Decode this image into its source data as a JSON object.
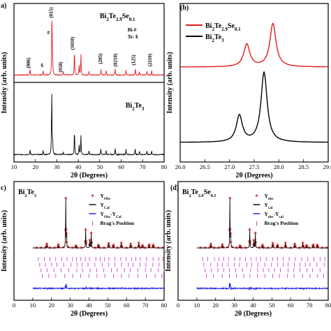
{
  "chart_data": [
    {
      "panel": "(a)",
      "type": "line",
      "xlabel": "2θ (Degrees)",
      "ylabel": "Intensity (arb. units)",
      "xlim": [
        10,
        80
      ],
      "xticks": [
        "10",
        "20",
        "30",
        "40",
        "50",
        "60",
        "70",
        "80"
      ],
      "series": [
        {
          "name": "Bi₂Te₂.₉Se₀.₁",
          "color": "#e41a1c",
          "peaks": [
            [
              17.5,
              0.1
            ],
            [
              23.6,
              0.06
            ],
            [
              27.7,
              1.0
            ],
            [
              28.0,
              0.22
            ],
            [
              33.0,
              0.05
            ],
            [
              38.2,
              0.38
            ],
            [
              40.4,
              0.15
            ],
            [
              41.2,
              0.32
            ],
            [
              45.0,
              0.06
            ],
            [
              50.6,
              0.09
            ],
            [
              53.0,
              0.06
            ],
            [
              57.2,
              0.1
            ],
            [
              62.2,
              0.08
            ],
            [
              66.6,
              0.1
            ],
            [
              68.5,
              0.05
            ],
            [
              72.0,
              0.06
            ],
            [
              74.2,
              0.07
            ]
          ]
        },
        {
          "name": "Bi₂Te₃",
          "color": "#000000",
          "peaks": [
            [
              17.5,
              0.08
            ],
            [
              23.6,
              0.06
            ],
            [
              27.6,
              1.0
            ],
            [
              28.0,
              0.22
            ],
            [
              33.0,
              0.04
            ],
            [
              38.2,
              0.37
            ],
            [
              40.4,
              0.15
            ],
            [
              41.2,
              0.3
            ],
            [
              45.0,
              0.06
            ],
            [
              50.5,
              0.09
            ],
            [
              53.0,
              0.06
            ],
            [
              57.2,
              0.1
            ],
            [
              62.2,
              0.08
            ],
            [
              66.5,
              0.1
            ],
            [
              68.5,
              0.05
            ],
            [
              72.0,
              0.06
            ],
            [
              74.2,
              0.06
            ]
          ]
        }
      ],
      "annotations": [
        "(006)",
        "(015)",
        "(018)",
        "(1010)",
        "(205)",
        "(0210)",
        "(125)",
        "(2110)",
        "Bi-#",
        "Te- $"
      ],
      "labels": {
        "red": "Bi2Te2.9Se0.1",
        "black": "Bi2Te3"
      }
    },
    {
      "panel": "(b)",
      "type": "line",
      "xlabel": "2θ (Degrees)",
      "ylabel": "Intensity (arb. units)",
      "xlim": [
        26.0,
        29.0
      ],
      "xticks": [
        "26.0",
        "26.5",
        "27.0",
        "27.5",
        "28.0",
        "28.5",
        "29.0"
      ],
      "series": [
        {
          "name": "Bi2Te2.9Se0.1",
          "color": "#e41a1c",
          "peaks": [
            [
              27.35,
              0.52
            ],
            [
              27.88,
              1.0
            ]
          ]
        },
        {
          "name": "Bi2Te3",
          "color": "#000000",
          "peaks": [
            [
              27.2,
              0.38
            ],
            [
              27.7,
              1.0
            ]
          ]
        }
      ]
    },
    {
      "panel": "(c)",
      "type": "line",
      "title": "Bi2Te3",
      "xlabel": "2θ (Degrees)",
      "ylabel": "Intensity (arb. units)",
      "xlim": [
        0,
        80
      ],
      "xticks": [
        "0",
        "10",
        "20",
        "30",
        "40",
        "50",
        "60",
        "70",
        "80"
      ],
      "legend": [
        "Y_Obs",
        "Y_Cal",
        "Y_Obs-Y_Cal",
        "Brag's Position"
      ],
      "legend_position": "top-right"
    },
    {
      "panel": "(d)",
      "type": "line",
      "title": "Bi2Te2.9Se0.1",
      "xlabel": "2θ (Degrees)",
      "ylabel": "Intensity (arb. units)",
      "xlim": [
        0,
        80
      ],
      "xticks": [
        "0",
        "10",
        "20",
        "30",
        "40",
        "50",
        "60",
        "70",
        "80"
      ],
      "legend": [
        "Y_obs",
        "Y_cal",
        "Y_obs-Y_cal",
        "Brag's Position"
      ],
      "legend_position": "top-right"
    }
  ],
  "colors": {
    "red": "#e41a1c",
    "black": "#000000",
    "blue": "#1f1fe0",
    "magenta": "#cc33cc"
  }
}
